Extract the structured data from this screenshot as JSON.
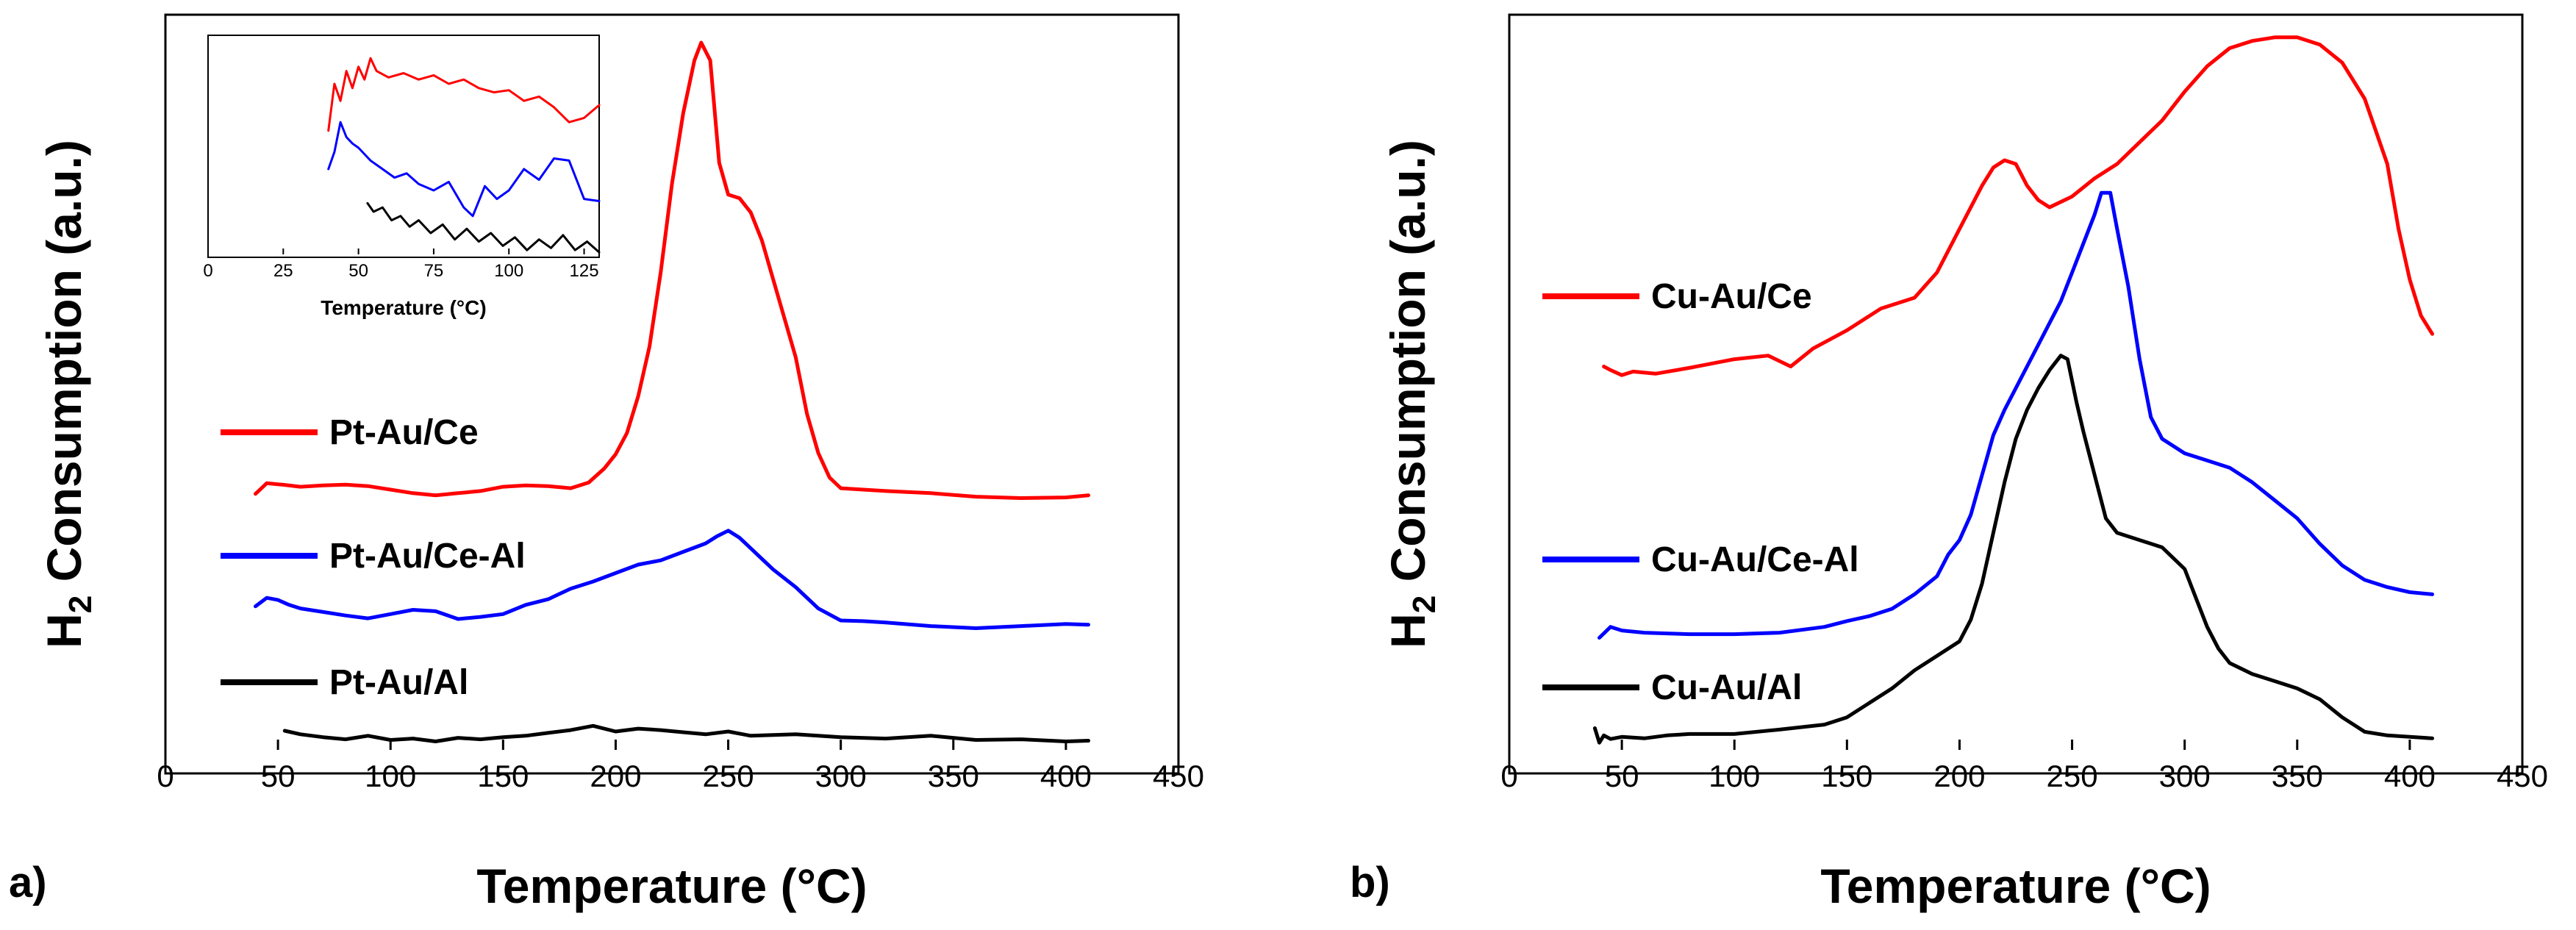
{
  "chart_data": [
    {
      "panel_label": "a)",
      "type": "line",
      "xlabel": "Temperature (°C)",
      "ylabel_main": "H",
      "ylabel_sub": "2",
      "ylabel_rest": " Consumption (a.u.)",
      "xlim": [
        0,
        450
      ],
      "ylim": [
        0,
        1
      ],
      "xticks": [
        0,
        50,
        100,
        150,
        200,
        250,
        300,
        350,
        400,
        450
      ],
      "legend": "left",
      "series": [
        {
          "name": "Pt-Au/Ce",
          "color": "#ff0000",
          "x": [
            40,
            45,
            52,
            60,
            70,
            80,
            90,
            100,
            110,
            120,
            130,
            140,
            150,
            160,
            170,
            180,
            188,
            195,
            200,
            205,
            210,
            215,
            220,
            225,
            230,
            235,
            238,
            242,
            246,
            250,
            255,
            260,
            265,
            270,
            275,
            280,
            285,
            290,
            295,
            300,
            310,
            320,
            340,
            360,
            380,
            400,
            410
          ],
          "y": [
            0.362,
            0.377,
            0.375,
            0.372,
            0.374,
            0.375,
            0.373,
            0.368,
            0.363,
            0.36,
            0.363,
            0.366,
            0.372,
            0.374,
            0.373,
            0.37,
            0.378,
            0.398,
            0.418,
            0.448,
            0.5,
            0.57,
            0.675,
            0.8,
            0.9,
            0.975,
            1.0,
            0.975,
            0.83,
            0.785,
            0.78,
            0.76,
            0.72,
            0.665,
            0.61,
            0.555,
            0.475,
            0.42,
            0.385,
            0.37,
            0.368,
            0.366,
            0.363,
            0.358,
            0.356,
            0.357,
            0.36
          ]
        },
        {
          "name": "Pt-Au/Ce-Al",
          "color": "#0000ff",
          "x": [
            40,
            45,
            50,
            55,
            60,
            70,
            80,
            90,
            100,
            110,
            120,
            130,
            140,
            150,
            160,
            170,
            180,
            190,
            200,
            210,
            220,
            230,
            240,
            245,
            250,
            255,
            260,
            265,
            270,
            280,
            290,
            300,
            310,
            320,
            340,
            360,
            380,
            400,
            410
          ],
          "y": [
            0.203,
            0.215,
            0.212,
            0.205,
            0.2,
            0.195,
            0.19,
            0.186,
            0.192,
            0.198,
            0.196,
            0.185,
            0.188,
            0.192,
            0.205,
            0.213,
            0.228,
            0.238,
            0.25,
            0.262,
            0.268,
            0.28,
            0.292,
            0.302,
            0.31,
            0.3,
            0.285,
            0.27,
            0.255,
            0.23,
            0.2,
            0.183,
            0.182,
            0.18,
            0.175,
            0.172,
            0.175,
            0.178,
            0.177
          ]
        },
        {
          "name": "Pt-Au/Al",
          "color": "#000000",
          "x": [
            53,
            60,
            70,
            80,
            90,
            100,
            110,
            120,
            130,
            140,
            150,
            160,
            170,
            180,
            190,
            200,
            210,
            220,
            230,
            240,
            250,
            260,
            280,
            300,
            320,
            340,
            360,
            380,
            400,
            410
          ],
          "y": [
            0.027,
            0.022,
            0.018,
            0.015,
            0.02,
            0.014,
            0.016,
            0.012,
            0.017,
            0.015,
            0.018,
            0.02,
            0.024,
            0.028,
            0.034,
            0.026,
            0.03,
            0.028,
            0.025,
            0.022,
            0.026,
            0.02,
            0.022,
            0.018,
            0.016,
            0.02,
            0.014,
            0.015,
            0.012,
            0.013
          ]
        }
      ],
      "inset": {
        "xlabel": "Temperature (°C)",
        "xlim": [
          0,
          130
        ],
        "ylim": [
          0,
          1
        ],
        "xticks": [
          0,
          25,
          50,
          75,
          100,
          125
        ],
        "series": [
          {
            "name": "Pt-Au/Ce",
            "color": "#ff0000",
            "x": [
              40,
              42,
              44,
              46,
              48,
              50,
              52,
              54,
              56,
              60,
              65,
              70,
              75,
              80,
              85,
              90,
              95,
              100,
              105,
              110,
              115,
              120,
              125,
              130
            ],
            "y": [
              0.58,
              0.8,
              0.72,
              0.86,
              0.78,
              0.88,
              0.82,
              0.92,
              0.86,
              0.83,
              0.85,
              0.82,
              0.84,
              0.8,
              0.82,
              0.78,
              0.76,
              0.77,
              0.72,
              0.74,
              0.69,
              0.62,
              0.64,
              0.7
            ]
          },
          {
            "name": "Pt-Au/Ce-Al",
            "color": "#0000ff",
            "x": [
              40,
              42,
              44,
              46,
              48,
              50,
              54,
              58,
              62,
              66,
              70,
              75,
              80,
              85,
              88,
              92,
              96,
              100,
              105,
              110,
              115,
              120,
              125,
              130
            ],
            "y": [
              0.4,
              0.48,
              0.62,
              0.55,
              0.52,
              0.5,
              0.44,
              0.4,
              0.36,
              0.38,
              0.33,
              0.3,
              0.34,
              0.22,
              0.18,
              0.32,
              0.26,
              0.3,
              0.4,
              0.35,
              0.45,
              0.44,
              0.26,
              0.25
            ]
          },
          {
            "name": "Pt-Au/Al",
            "color": "#000000",
            "x": [
              53,
              55,
              58,
              61,
              64,
              67,
              70,
              74,
              78,
              82,
              86,
              90,
              94,
              98,
              102,
              106,
              110,
              114,
              118,
              122,
              126,
              130
            ],
            "y": [
              0.24,
              0.2,
              0.22,
              0.16,
              0.18,
              0.13,
              0.16,
              0.1,
              0.14,
              0.07,
              0.12,
              0.06,
              0.1,
              0.04,
              0.08,
              0.02,
              0.07,
              0.03,
              0.09,
              0.02,
              0.06,
              0.01
            ]
          }
        ]
      }
    },
    {
      "panel_label": "b)",
      "type": "line",
      "xlabel": "Temperature (°C)",
      "ylabel_main": "H",
      "ylabel_sub": "2",
      "ylabel_rest": " Consumption (a.u.)",
      "xlim": [
        0,
        450
      ],
      "ylim": [
        0,
        1
      ],
      "xticks": [
        0,
        50,
        100,
        150,
        200,
        250,
        300,
        350,
        400,
        450
      ],
      "legend": "left",
      "series": [
        {
          "name": "Cu-Au/Ce",
          "color": "#ff0000",
          "x": [
            42,
            45,
            50,
            55,
            65,
            80,
            100,
            115,
            125,
            135,
            150,
            165,
            180,
            190,
            200,
            210,
            215,
            220,
            225,
            230,
            235,
            240,
            250,
            260,
            270,
            280,
            290,
            300,
            310,
            320,
            330,
            340,
            350,
            360,
            370,
            380,
            390,
            395,
            400,
            405,
            410
          ],
          "y": [
            0.53,
            0.525,
            0.518,
            0.523,
            0.52,
            0.528,
            0.54,
            0.545,
            0.53,
            0.555,
            0.58,
            0.61,
            0.625,
            0.66,
            0.72,
            0.78,
            0.805,
            0.815,
            0.81,
            0.78,
            0.76,
            0.75,
            0.765,
            0.79,
            0.81,
            0.84,
            0.87,
            0.91,
            0.945,
            0.97,
            0.98,
            0.985,
            0.985,
            0.975,
            0.95,
            0.9,
            0.81,
            0.72,
            0.65,
            0.6,
            0.575
          ]
        },
        {
          "name": "Cu-Au/Ce-Al",
          "color": "#0000ff",
          "x": [
            40,
            45,
            50,
            60,
            80,
            100,
            120,
            140,
            150,
            160,
            170,
            180,
            190,
            195,
            200,
            205,
            210,
            215,
            220,
            225,
            230,
            235,
            240,
            245,
            250,
            255,
            260,
            263,
            267,
            270,
            275,
            280,
            285,
            290,
            300,
            310,
            320,
            330,
            340,
            350,
            360,
            370,
            380,
            390,
            400,
            410
          ],
          "y": [
            0.155,
            0.17,
            0.165,
            0.162,
            0.16,
            0.16,
            0.162,
            0.17,
            0.178,
            0.185,
            0.195,
            0.215,
            0.24,
            0.27,
            0.29,
            0.325,
            0.38,
            0.435,
            0.47,
            0.5,
            0.53,
            0.56,
            0.59,
            0.62,
            0.66,
            0.7,
            0.74,
            0.77,
            0.77,
            0.72,
            0.64,
            0.54,
            0.46,
            0.43,
            0.41,
            0.4,
            0.39,
            0.37,
            0.345,
            0.32,
            0.285,
            0.255,
            0.235,
            0.225,
            0.218,
            0.215
          ]
        },
        {
          "name": "Cu-Au/Al",
          "color": "#000000",
          "x": [
            38,
            40,
            42,
            45,
            50,
            60,
            70,
            80,
            100,
            120,
            140,
            150,
            160,
            170,
            180,
            190,
            200,
            205,
            210,
            215,
            220,
            225,
            230,
            235,
            240,
            245,
            248,
            252,
            255,
            260,
            265,
            270,
            280,
            290,
            300,
            305,
            310,
            315,
            320,
            330,
            340,
            350,
            360,
            370,
            380,
            390,
            400,
            405,
            410
          ],
          "y": [
            0.03,
            0.01,
            0.02,
            0.015,
            0.018,
            0.016,
            0.02,
            0.022,
            0.022,
            0.028,
            0.035,
            0.045,
            0.065,
            0.085,
            0.11,
            0.13,
            0.15,
            0.18,
            0.23,
            0.3,
            0.37,
            0.43,
            0.47,
            0.5,
            0.525,
            0.545,
            0.54,
            0.48,
            0.44,
            0.38,
            0.32,
            0.3,
            0.29,
            0.28,
            0.25,
            0.21,
            0.17,
            0.14,
            0.12,
            0.105,
            0.095,
            0.085,
            0.07,
            0.045,
            0.025,
            0.02,
            0.018,
            0.017,
            0.016
          ]
        }
      ]
    }
  ]
}
